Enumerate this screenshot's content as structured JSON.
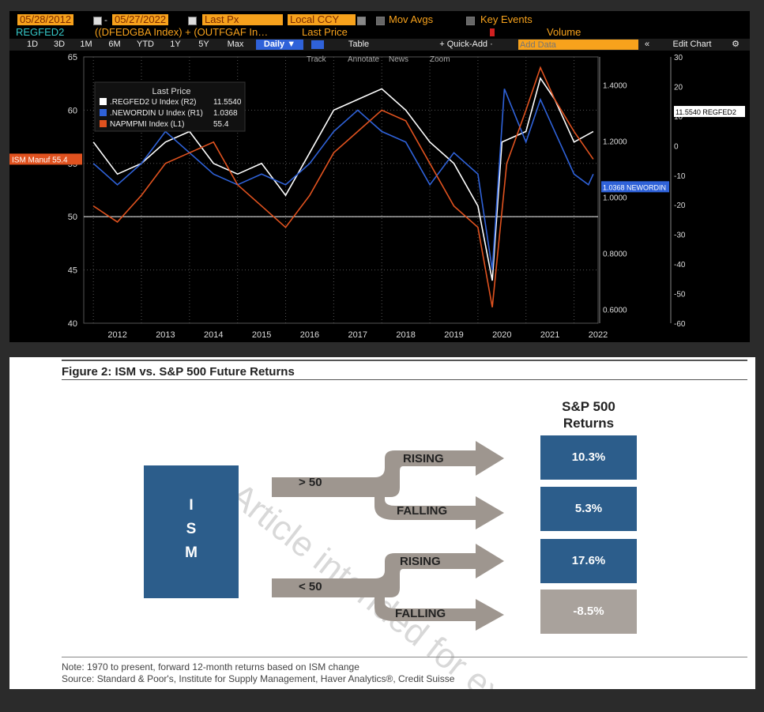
{
  "toolbar": {
    "start_date": "05/28/2012",
    "dash": "-",
    "end_date": "05/27/2022",
    "field": "Last Px",
    "currency": "Local CCY",
    "mov_avgs": "Mov Avgs",
    "key_events": "Key Events",
    "ticker": "REGFED2",
    "formula": "((DFEDGBA Index) + (OUTFGAF In…",
    "price_label": "Last Price",
    "volume_label": "Volume",
    "periods": [
      "1D",
      "3D",
      "1M",
      "6M",
      "YTD",
      "1Y",
      "5Y",
      "Max"
    ],
    "frequency": "Daily ▼",
    "table": "Table",
    "quick_add": "+ Quick-Add ·",
    "add_data_placeholder": "Add Data",
    "collapse": "«",
    "edit_chart": "Edit Chart",
    "tools": [
      "Track",
      "Annotate",
      "News",
      "Zoom"
    ],
    "colors": {
      "orange": "#f7a21c",
      "blue": "#2f62d9"
    }
  },
  "chart_data": [
    {
      "type": "line",
      "legend_title": "Last Price",
      "legend_placement": "top-left",
      "series": [
        {
          "name": ".REGFED2 U Index (R2)",
          "last": "11.5540",
          "color": "#ffffff",
          "axis": "R2",
          "points": [
            [
              2012.0,
              57
            ],
            [
              2012.5,
              54
            ],
            [
              2013.0,
              55
            ],
            [
              2013.5,
              57
            ],
            [
              2014.0,
              58
            ],
            [
              2014.5,
              55
            ],
            [
              2015.0,
              54
            ],
            [
              2015.5,
              55
            ],
            [
              2016.0,
              52
            ],
            [
              2016.5,
              56
            ],
            [
              2017.0,
              60
            ],
            [
              2017.5,
              61
            ],
            [
              2018.0,
              62
            ],
            [
              2018.5,
              60
            ],
            [
              2019.0,
              57
            ],
            [
              2019.5,
              55
            ],
            [
              2020.0,
              51
            ],
            [
              2020.3,
              44
            ],
            [
              2020.5,
              57
            ],
            [
              2021.0,
              58
            ],
            [
              2021.3,
              63
            ],
            [
              2021.6,
              61
            ],
            [
              2022.0,
              57
            ],
            [
              2022.4,
              58
            ]
          ]
        },
        {
          "name": ".NEWORDIN U Index (R1)",
          "last": "1.0368",
          "color": "#2f62d9",
          "axis": "R1",
          "points": [
            [
              2012.0,
              55
            ],
            [
              2012.5,
              53
            ],
            [
              2013.0,
              55
            ],
            [
              2013.5,
              58
            ],
            [
              2014.0,
              56
            ],
            [
              2014.5,
              54
            ],
            [
              2015.0,
              53
            ],
            [
              2015.5,
              54
            ],
            [
              2016.0,
              53
            ],
            [
              2016.5,
              55
            ],
            [
              2017.0,
              58
            ],
            [
              2017.5,
              60
            ],
            [
              2018.0,
              58
            ],
            [
              2018.5,
              57
            ],
            [
              2019.0,
              53
            ],
            [
              2019.5,
              56
            ],
            [
              2020.0,
              54
            ],
            [
              2020.3,
              45
            ],
            [
              2020.55,
              62
            ],
            [
              2021.0,
              57
            ],
            [
              2021.3,
              61
            ],
            [
              2021.6,
              58
            ],
            [
              2022.0,
              54
            ],
            [
              2022.3,
              53
            ],
            [
              2022.4,
              54
            ]
          ]
        },
        {
          "name": "NAPMPMI Index (L1)",
          "last": "55.4",
          "color": "#e0521f",
          "axis": "L1",
          "points": [
            [
              2012.0,
              51
            ],
            [
              2012.5,
              49.5
            ],
            [
              2013.0,
              52
            ],
            [
              2013.5,
              55
            ],
            [
              2014.0,
              56
            ],
            [
              2014.5,
              57
            ],
            [
              2015.0,
              53
            ],
            [
              2015.5,
              51
            ],
            [
              2016.0,
              49
            ],
            [
              2016.5,
              52
            ],
            [
              2017.0,
              56
            ],
            [
              2017.5,
              58
            ],
            [
              2018.0,
              60
            ],
            [
              2018.5,
              59
            ],
            [
              2019.0,
              55
            ],
            [
              2019.5,
              51
            ],
            [
              2020.0,
              49
            ],
            [
              2020.3,
              41.5
            ],
            [
              2020.6,
              55
            ],
            [
              2021.0,
              60
            ],
            [
              2021.3,
              64
            ],
            [
              2021.6,
              61
            ],
            [
              2022.0,
              58
            ],
            [
              2022.4,
              55.4
            ]
          ]
        }
      ],
      "x_ticks": [
        "2012",
        "2013",
        "2014",
        "2015",
        "2016",
        "2017",
        "2018",
        "2019",
        "2020",
        "2021",
        "2022"
      ],
      "xlim": [
        2011.8,
        2022.5
      ],
      "left_axis": {
        "ticks": [
          "65",
          "60",
          "55",
          "50",
          "45",
          "40"
        ],
        "ylim": [
          40,
          65
        ]
      },
      "right_axis_1": {
        "ticks": [
          "1.4000",
          "1.2000",
          "1.0000",
          "0.8000",
          "0.6000"
        ],
        "ylim": [
          0.55,
          1.5
        ]
      },
      "right_axis_2": {
        "ticks": [
          "30",
          "20",
          "10",
          "0",
          "-10",
          "-20",
          "-30",
          "-40",
          "-50",
          "-60"
        ],
        "ylim": [
          -60,
          30
        ]
      },
      "reference_line": 50,
      "grid": true,
      "tags": {
        "left": "ISM Manuf 55.4",
        "regfed": "11.5540 REGFED2",
        "neword": "1.0368 NEWORDIN"
      }
    },
    {
      "type": "table",
      "title": "Figure 2: ISM vs. S&P 500 Future Returns",
      "ism_label": [
        "I",
        "S",
        "M"
      ],
      "header": [
        "S&P 500",
        "Returns"
      ],
      "branches": [
        {
          "condition": "> 50",
          "rising": "RISING",
          "falling": "FALLING",
          "rising_return": "10.3%",
          "falling_return": "5.3%"
        },
        {
          "condition": "< 50",
          "rising": "RISING",
          "falling": "FALLING",
          "rising_return": "17.6%",
          "falling_return": "-8.5%"
        }
      ],
      "colors": {
        "blue": "#2c5d8b",
        "gray": "#a9a29c",
        "arrow": "#9e968f"
      },
      "note": "Note: 1970 to present, forward 12-month returns based on ISM change",
      "source": "Source: Standard & Poor's, Institute for Supply Management, Haver Analytics®, Credit Suisse",
      "watermark": "Article intended for exc..."
    }
  ]
}
